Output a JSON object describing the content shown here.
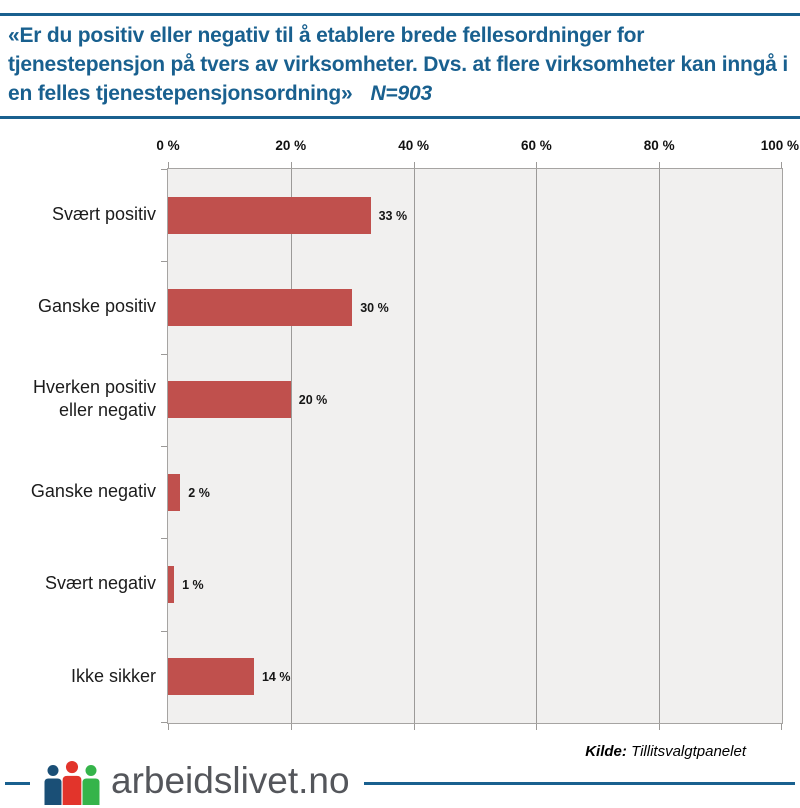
{
  "header": {
    "question": "«Er du positiv eller negativ til å etablere brede fellesordninger for tjenestepensjon på tvers av virksomheter. Dvs. at flere virksomheter kan inngå i en felles tjenestepensjonsordning»",
    "n_label": "N=903"
  },
  "chart_data": {
    "type": "bar",
    "orientation": "horizontal",
    "categories": [
      "Svært positiv",
      "Ganske positiv",
      "Hverken positiv eller negativ",
      "Ganske negativ",
      "Svært negativ",
      "Ikke sikker"
    ],
    "values": [
      33,
      30,
      20,
      2,
      1,
      14
    ],
    "value_labels": [
      "33 %",
      "30 %",
      "20 %",
      "2 %",
      "1 %",
      "14 %"
    ],
    "x_ticks": [
      "0 %",
      "20 %",
      "40 %",
      "60 %",
      "80 %",
      "100 %"
    ],
    "x_tick_values": [
      0,
      20,
      40,
      60,
      80,
      100
    ],
    "xlim": [
      0,
      100
    ],
    "grid": true,
    "legend": false,
    "bar_color": "#c0504d",
    "plot_bg": "#f1f0ef",
    "grid_color": "#9c9a98"
  },
  "footer": {
    "source_label": "Kilde:",
    "source_value": "Tillitsvalgtpanelet",
    "logo_text": "arbeidslivet.no",
    "accent_color": "#19608f",
    "logo_person_colors": {
      "left": "#1a4f76",
      "middle": "#e2342b",
      "right": "#35b44a"
    }
  }
}
